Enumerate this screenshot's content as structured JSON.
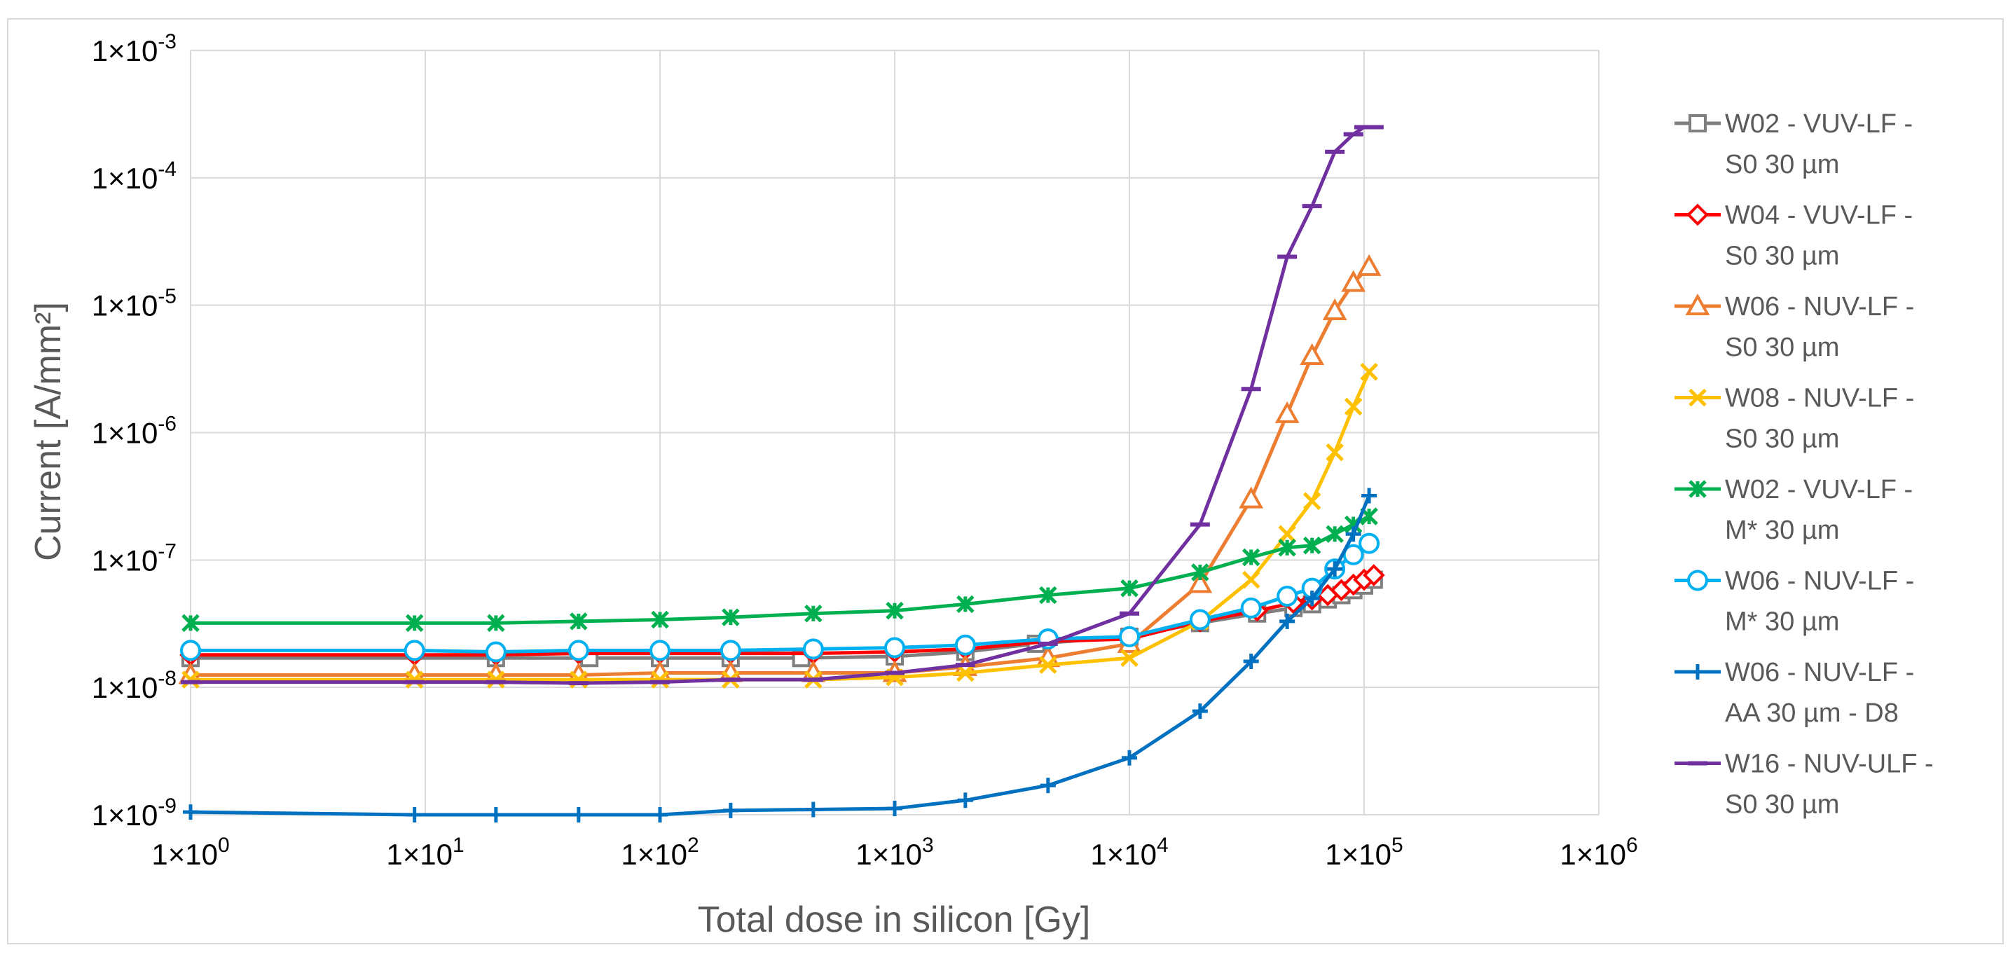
{
  "chart_data": {
    "type": "line",
    "title": "",
    "xlabel": "Total dose in silicon [Gy]",
    "ylabel": "Current [A/mm²]",
    "xscale": "log",
    "yscale": "log",
    "xlim": [
      1,
      1000000
    ],
    "ylim": [
      1e-09,
      0.001
    ],
    "grid": true,
    "legend_position": "right",
    "x_tick_labels": [
      {
        "base": "1×10",
        "exp": "0"
      },
      {
        "base": "1×10",
        "exp": "1"
      },
      {
        "base": "1×10",
        "exp": "2"
      },
      {
        "base": "1×10",
        "exp": "3"
      },
      {
        "base": "1×10",
        "exp": "4"
      },
      {
        "base": "1×10",
        "exp": "5"
      },
      {
        "base": "1×10",
        "exp": "6"
      }
    ],
    "y_tick_labels": [
      {
        "base": "1×10",
        "exp": "-9"
      },
      {
        "base": "1×10",
        "exp": "-8"
      },
      {
        "base": "1×10",
        "exp": "-7"
      },
      {
        "base": "1×10",
        "exp": "-6"
      },
      {
        "base": "1×10",
        "exp": "-5"
      },
      {
        "base": "1×10",
        "exp": "-4"
      },
      {
        "base": "1×10",
        "exp": "-3"
      }
    ],
    "series": [
      {
        "name": "W02 - VUV-LF - S0 30 µm",
        "legend_lines": [
          "W02 - VUV-LF -",
          "S0 30 µm"
        ],
        "color": "#7f7f7f",
        "marker": "square",
        "x": [
          1,
          100000,
          110000
        ],
        "y": [
          1.7e-08,
          6e-08,
          7e-08
        ],
        "points_x": [
          1,
          20,
          50,
          100,
          200,
          400,
          1000,
          2000,
          4000,
          10000,
          20000,
          35000,
          50000,
          60000,
          70000,
          80000,
          90000,
          100000,
          110000
        ],
        "points_y": [
          1.7e-08,
          1.7e-08,
          1.7e-08,
          1.7e-08,
          1.7e-08,
          1.7e-08,
          1.75e-08,
          1.9e-08,
          2.2e-08,
          2.5e-08,
          3.2e-08,
          3.8e-08,
          4.2e-08,
          4.5e-08,
          4.9e-08,
          5.3e-08,
          5.8e-08,
          6.3e-08,
          7e-08
        ]
      },
      {
        "name": "W04 - VUV-LF - S0 30 µm",
        "legend_lines": [
          "W04 - VUV-LF -",
          "S0 30 µm"
        ],
        "color": "#ff0000",
        "marker": "diamond",
        "points_x": [
          1,
          9,
          20,
          45,
          100,
          200,
          450,
          1000,
          2000,
          4500,
          10000,
          20000,
          35000,
          50000,
          60000,
          70000,
          80000,
          90000,
          100000,
          110000
        ],
        "points_y": [
          1.8e-08,
          1.8e-08,
          1.8e-08,
          1.85e-08,
          1.85e-08,
          1.85e-08,
          1.85e-08,
          1.9e-08,
          2e-08,
          2.3e-08,
          2.4e-08,
          3.3e-08,
          4e-08,
          4.6e-08,
          4.9e-08,
          5.3e-08,
          5.8e-08,
          6.4e-08,
          7e-08,
          7.6e-08
        ]
      },
      {
        "name": "W06 - NUV-LF - S0 30 µm",
        "legend_lines": [
          "W06 - NUV-LF -",
          "S0 30 µm"
        ],
        "color": "#ed7d31",
        "marker": "triangle",
        "points_x": [
          1,
          9,
          20,
          45,
          100,
          200,
          450,
          1000,
          2000,
          4500,
          10000,
          20000,
          33000,
          47000,
          60000,
          75000,
          90000,
          105000
        ],
        "points_y": [
          1.25e-08,
          1.25e-08,
          1.25e-08,
          1.25e-08,
          1.3e-08,
          1.3e-08,
          1.3e-08,
          1.3e-08,
          1.45e-08,
          1.7e-08,
          2.2e-08,
          6.5e-08,
          3e-07,
          1.4e-06,
          4e-06,
          9e-06,
          1.5e-05,
          2e-05
        ]
      },
      {
        "name": "W08 - NUV-LF - S0 30 µm",
        "legend_lines": [
          "W08 - NUV-LF -",
          "S0 30 µm"
        ],
        "color": "#ffc000",
        "marker": "x",
        "points_x": [
          1,
          9,
          20,
          45,
          100,
          200,
          450,
          1000,
          2000,
          4500,
          10000,
          20000,
          33000,
          47000,
          60000,
          75000,
          90000,
          105000
        ],
        "points_y": [
          1.15e-08,
          1.15e-08,
          1.15e-08,
          1.15e-08,
          1.15e-08,
          1.15e-08,
          1.15e-08,
          1.2e-08,
          1.3e-08,
          1.5e-08,
          1.7e-08,
          3.3e-08,
          7e-08,
          1.6e-07,
          2.9e-07,
          7e-07,
          1.6e-06,
          3e-06
        ]
      },
      {
        "name": "W02 - VUV-LF - M* 30 µm",
        "legend_lines": [
          "W02 - VUV-LF -",
          "M* 30 µm"
        ],
        "color": "#00b050",
        "marker": "star",
        "points_x": [
          1,
          9,
          20,
          45,
          100,
          200,
          450,
          1000,
          2000,
          4500,
          10000,
          20000,
          33000,
          47000,
          60000,
          75000,
          90000,
          105000
        ],
        "points_y": [
          3.2e-08,
          3.2e-08,
          3.2e-08,
          3.3e-08,
          3.4e-08,
          3.55e-08,
          3.8e-08,
          4e-08,
          4.5e-08,
          5.3e-08,
          6e-08,
          8e-08,
          1.05e-07,
          1.25e-07,
          1.3e-07,
          1.6e-07,
          1.9e-07,
          2.2e-07
        ]
      },
      {
        "name": "W06 - NUV-LF - M* 30 µm",
        "legend_lines": [
          "W06 - NUV-LF -",
          "M* 30 µm"
        ],
        "color": "#00b0f0",
        "marker": "circle",
        "points_x": [
          1,
          9,
          20,
          45,
          100,
          200,
          450,
          1000,
          2000,
          4500,
          10000,
          20000,
          33000,
          47000,
          60000,
          75000,
          90000,
          105000
        ],
        "points_y": [
          1.95e-08,
          1.95e-08,
          1.9e-08,
          1.95e-08,
          1.95e-08,
          1.95e-08,
          2e-08,
          2.05e-08,
          2.15e-08,
          2.4e-08,
          2.5e-08,
          3.4e-08,
          4.2e-08,
          5.2e-08,
          6e-08,
          8.5e-08,
          1.1e-07,
          1.35e-07
        ]
      },
      {
        "name": "W06 - NUV-LF - AA 30 µm - D8",
        "legend_lines": [
          "W06 - NUV-LF -",
          "AA 30 µm - D8"
        ],
        "color": "#0070c0",
        "marker": "plus",
        "points_x": [
          1,
          9,
          20,
          45,
          100,
          200,
          450,
          1000,
          2000,
          4500,
          10000,
          20000,
          33000,
          47000,
          60000,
          75000,
          90000,
          105000
        ],
        "points_y": [
          1.05e-09,
          1e-09,
          1e-09,
          1e-09,
          1e-09,
          1.08e-09,
          1.1e-09,
          1.12e-09,
          1.3e-09,
          1.7e-09,
          2.8e-09,
          6.5e-09,
          1.6e-08,
          3.3e-08,
          5e-08,
          8.5e-08,
          1.6e-07,
          3.2e-07
        ]
      },
      {
        "name": "W16 - NUV-ULF - S0 30 µm",
        "legend_lines": [
          "W16 - NUV-ULF -",
          "S0 30 µm"
        ],
        "color": "#7030a0",
        "marker": "dash",
        "points_x": [
          1,
          9,
          20,
          45,
          100,
          200,
          450,
          1000,
          2000,
          4500,
          10000,
          20000,
          33000,
          47000,
          60000,
          75000,
          90000,
          100000,
          110000
        ],
        "points_y": [
          1.1e-08,
          1.1e-08,
          1.1e-08,
          1.08e-08,
          1.1e-08,
          1.15e-08,
          1.15e-08,
          1.3e-08,
          1.5e-08,
          2.2e-08,
          3.8e-08,
          1.9e-07,
          2.2e-06,
          2.4e-05,
          6e-05,
          0.00016,
          0.00022,
          0.00025,
          0.00025
        ]
      }
    ]
  }
}
